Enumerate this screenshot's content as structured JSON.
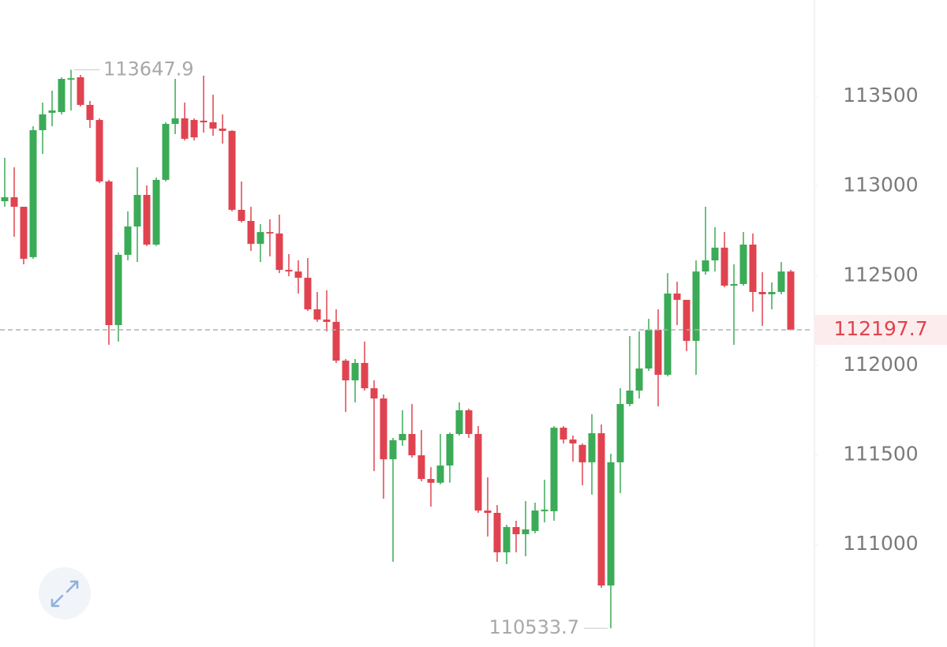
{
  "chart_data": {
    "type": "candlestick",
    "up_color": "#3bab57",
    "down_color": "#e0434f",
    "ylim": [
      110429,
      114037
    ],
    "yticks": [
      111000,
      111500,
      112000,
      112500,
      113000,
      113500
    ],
    "last_price": 112197.7,
    "max_marker": 113647.9,
    "min_marker": 110533.7,
    "open": [
      112915,
      112937,
      112884,
      112603,
      113311,
      113408,
      113412,
      113593,
      113606,
      113452,
      113368,
      113025,
      112224,
      112616,
      112774,
      112950,
      112673,
      113034,
      113346,
      113377,
      113368,
      113364,
      113355,
      113320,
      113307,
      112867,
      112805,
      112677,
      112743,
      112735,
      112532,
      112523,
      112488,
      112312,
      112255,
      112242,
      112026,
      111916,
      112013,
      111872,
      111815,
      111476,
      111582,
      111617,
      111498,
      111366,
      111345,
      111441,
      111617,
      111749,
      111617,
      111190,
      111177,
      110957,
      111098,
      111058,
      111076,
      111186,
      111186,
      111652,
      111586,
      111556,
      111459,
      111621,
      110772,
      111459,
      111784,
      111859,
      111982,
      112198,
      111947,
      112400,
      112365,
      112136,
      112523,
      112585,
      112656,
      112444,
      112453,
      112673,
      112409,
      112396,
      112409,
      112523
    ],
    "high": [
      113157,
      113104,
      112884,
      113333,
      113465,
      113531,
      113606,
      113647.9,
      113619,
      113474,
      113377,
      113034,
      112629,
      112858,
      113104,
      113003,
      113047,
      113355,
      113597,
      113465,
      113377,
      113615,
      113509,
      113399,
      113311,
      113025,
      112884,
      112787,
      112814,
      112840,
      112620,
      112585,
      112598,
      112409,
      112418,
      112312,
      112035,
      112035,
      112132,
      111916,
      111837,
      111595,
      111749,
      111784,
      111639,
      111432,
      111617,
      111625,
      111793,
      111758,
      111661,
      111375,
      111221,
      111111,
      111133,
      111243,
      111234,
      111362,
      111661,
      111661,
      111608,
      111564,
      111727,
      111670,
      111507,
      111872,
      112163,
      112189,
      112259,
      112312,
      112514,
      112466,
      112365,
      112585,
      112884,
      112770,
      112743,
      112563,
      112743,
      112735,
      112519,
      112462,
      112576,
      112532
    ],
    "low": [
      112884,
      112717,
      112563,
      112594,
      113179,
      113333,
      113399,
      113421,
      113443,
      113324,
      113016,
      112114,
      112132,
      112585,
      112576,
      112665,
      112665,
      113025,
      113289,
      113254,
      113254,
      113298,
      113280,
      113236,
      112858,
      112796,
      112638,
      112576,
      112607,
      112514,
      112497,
      112400,
      112303,
      112242,
      112189,
      112013,
      111740,
      111793,
      111859,
      111410,
      111256,
      110904,
      111551,
      111485,
      111353,
      111212,
      111336,
      111345,
      111608,
      111595,
      111177,
      111045,
      110904,
      110891,
      110957,
      110935,
      111063,
      111124,
      111133,
      111564,
      111463,
      111331,
      111279,
      110759,
      110533.7,
      111287,
      111771,
      111815,
      111969,
      111771,
      111938,
      112224,
      112079,
      111947,
      112505,
      112523,
      112435,
      112114,
      112444,
      112299,
      112220,
      112312,
      112396,
      112198
    ],
    "close": [
      112937,
      112884,
      112594,
      113311,
      113399,
      113421,
      113597,
      113601,
      113452,
      113368,
      113025,
      112224,
      112616,
      112774,
      112950,
      112673,
      113034,
      113346,
      113377,
      113263,
      113271,
      113355,
      113320,
      113307,
      112867,
      112805,
      112677,
      112743,
      112735,
      112532,
      112523,
      112488,
      112312,
      112255,
      112242,
      112026,
      111916,
      112013,
      111872,
      111815,
      111476,
      111582,
      111617,
      111498,
      111366,
      111345,
      111441,
      111617,
      111749,
      111617,
      111190,
      111177,
      110957,
      111098,
      111058,
      111085,
      111190,
      111195,
      111652,
      111586,
      111564,
      111459,
      111621,
      110772,
      111459,
      111784,
      111859,
      111982,
      112198,
      111947,
      112400,
      112365,
      112136,
      112523,
      112585,
      112656,
      112444,
      112453,
      112673,
      112409,
      112396,
      112409,
      112523,
      112197.7
    ]
  }
}
